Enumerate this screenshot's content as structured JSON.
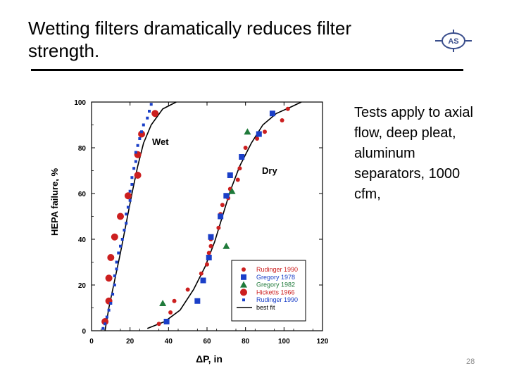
{
  "slide": {
    "title": "Wetting filters dramatically reduces filter strength.",
    "side_text": "Tests apply to axial flow, deep pleat, aluminum separators, 1000 cfm,",
    "page_number": "28",
    "logo_text": "AS"
  },
  "chart_data": {
    "type": "scatter",
    "title": "",
    "xlabel": "ΔP, in",
    "ylabel": "HEPA failure, %",
    "xlim": [
      0,
      120
    ],
    "ylim": [
      0,
      100
    ],
    "xticks": [
      0,
      20,
      40,
      60,
      80,
      100,
      120
    ],
    "yticks": [
      0,
      20,
      40,
      60,
      80,
      100
    ],
    "annotations": [
      {
        "text": "Wet",
        "x": 31,
        "y": 82
      },
      {
        "text": "Dry",
        "x": 89,
        "y": 69
      }
    ],
    "legend_position": "lower-right",
    "series": [
      {
        "name": "Rudinger 1990",
        "marker": "circle",
        "color": "#cc1f1f",
        "points": [
          [
            35,
            3
          ],
          [
            41,
            8
          ],
          [
            43,
            13
          ],
          [
            50,
            18
          ],
          [
            57,
            25
          ],
          [
            60,
            29
          ],
          [
            61,
            34
          ],
          [
            62,
            37
          ],
          [
            62,
            40
          ],
          [
            66,
            45
          ],
          [
            67,
            51
          ],
          [
            68,
            55
          ],
          [
            71,
            58
          ],
          [
            72,
            62
          ],
          [
            76,
            66
          ],
          [
            77,
            71
          ],
          [
            80,
            80
          ],
          [
            86,
            84
          ],
          [
            90,
            87
          ],
          [
            99,
            92
          ],
          [
            102,
            97
          ]
        ]
      },
      {
        "name": "Gregory 1978",
        "marker": "square",
        "color": "#1a3fc8",
        "points": [
          [
            39,
            4
          ],
          [
            55,
            13
          ],
          [
            58,
            22
          ],
          [
            61,
            32
          ],
          [
            62,
            41
          ],
          [
            67,
            50
          ],
          [
            70,
            59
          ],
          [
            72,
            68
          ],
          [
            78,
            76
          ],
          [
            87,
            86
          ],
          [
            94,
            95
          ]
        ]
      },
      {
        "name": "Gregory 1982",
        "marker": "triangle",
        "color": "#1f7a3a",
        "points": [
          [
            37,
            12
          ],
          [
            70,
            37
          ],
          [
            73,
            61
          ],
          [
            81,
            87
          ]
        ]
      },
      {
        "name": "Hicketts 1966",
        "marker": "circle-large",
        "color": "#cc1f1f",
        "points": [
          [
            7,
            4
          ],
          [
            9,
            13
          ],
          [
            9,
            23
          ],
          [
            10,
            32
          ],
          [
            12,
            41
          ],
          [
            15,
            50
          ],
          [
            19,
            59
          ],
          [
            24,
            68
          ],
          [
            24,
            77
          ],
          [
            26,
            86
          ],
          [
            33,
            95
          ]
        ]
      },
      {
        "name": "Rudinger 1990",
        "marker": "square-small",
        "color": "#1a3fc8",
        "points": [
          [
            6,
            1
          ],
          [
            7,
            3
          ],
          [
            8,
            6
          ],
          [
            9,
            9
          ],
          [
            10,
            12
          ],
          [
            11,
            16
          ],
          [
            12,
            20
          ],
          [
            12,
            24
          ],
          [
            13,
            27
          ],
          [
            13,
            30
          ],
          [
            14,
            34
          ],
          [
            15,
            37
          ],
          [
            16,
            40
          ],
          [
            17,
            44
          ],
          [
            18,
            47
          ],
          [
            18,
            51
          ],
          [
            19,
            54
          ],
          [
            20,
            57
          ],
          [
            20,
            61
          ],
          [
            21,
            64
          ],
          [
            21,
            67
          ],
          [
            22,
            71
          ],
          [
            23,
            74
          ],
          [
            23,
            78
          ],
          [
            24,
            81
          ],
          [
            25,
            84
          ],
          [
            26,
            87
          ],
          [
            27,
            90
          ],
          [
            29,
            93
          ],
          [
            30,
            96
          ],
          [
            31,
            99
          ]
        ]
      }
    ],
    "fits": [
      {
        "name": "best fit",
        "curve": "wet",
        "points": [
          [
            7,
            0
          ],
          [
            9,
            10
          ],
          [
            12,
            22
          ],
          [
            15,
            34
          ],
          [
            18,
            47
          ],
          [
            21,
            60
          ],
          [
            24,
            72
          ],
          [
            27,
            82
          ],
          [
            31,
            90
          ],
          [
            37,
            97
          ],
          [
            44,
            100
          ]
        ]
      },
      {
        "curve": "dry",
        "points": [
          [
            29,
            1
          ],
          [
            38,
            4
          ],
          [
            46,
            9
          ],
          [
            53,
            18
          ],
          [
            59,
            28
          ],
          [
            64,
            39
          ],
          [
            68,
            50
          ],
          [
            72,
            61
          ],
          [
            77,
            72
          ],
          [
            83,
            82
          ],
          [
            89,
            90
          ],
          [
            96,
            95
          ],
          [
            104,
            98
          ],
          [
            109,
            100
          ]
        ]
      }
    ]
  }
}
